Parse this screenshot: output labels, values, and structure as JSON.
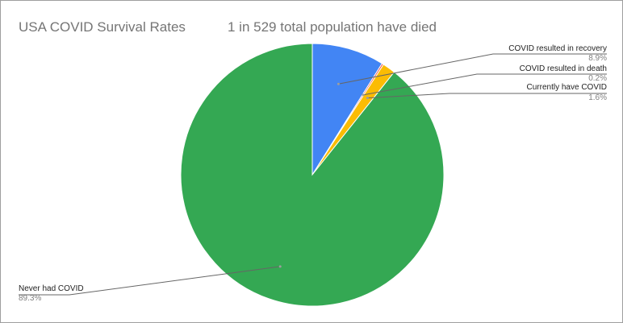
{
  "chart_data": {
    "type": "pie",
    "title": "USA COVID Survival Rates",
    "subtitle": "1 in 529 total population have died",
    "categories": [
      "COVID resulted in recovery",
      "COVID resulted in death",
      "Currently have COVID",
      "Never had COVID"
    ],
    "values": [
      8.9,
      0.2,
      1.6,
      89.3
    ],
    "value_labels": [
      "8.9%",
      "0.2%",
      "1.6%",
      "89.3%"
    ],
    "colors": [
      "#4285f4",
      "#ea4335",
      "#fbbc04",
      "#34a853"
    ],
    "legend": "labeled-slices",
    "start_angle": "top",
    "direction": "clockwise"
  }
}
